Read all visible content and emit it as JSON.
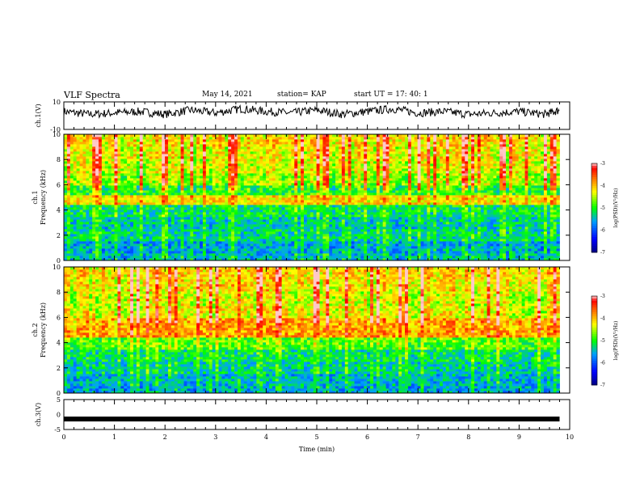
{
  "header": {
    "title": "VLF Spectra",
    "date": "May 14, 2021",
    "station": "station= KAP",
    "start": "start  UT =    17: 40: 1"
  },
  "colors": {
    "trace": "#000000",
    "colormap": [
      "#000080",
      "#0000ff",
      "#00a0ff",
      "#00ff00",
      "#ffff00",
      "#ff8000",
      "#ff0000",
      "#ffffff"
    ]
  },
  "chart_data": [
    {
      "type": "line",
      "title": "",
      "ylabel": "ch.1(V)",
      "ylim": [
        -10,
        10
      ],
      "yticks": [
        "10",
        "-10"
      ],
      "x": [
        0,
        0.5,
        1,
        1.5,
        2,
        2.5,
        3,
        3.5,
        4,
        4.5,
        5,
        5.5,
        6,
        6.5,
        7,
        7.5,
        8,
        8.5,
        9,
        9.5,
        9.8
      ],
      "y": [
        3,
        1,
        2,
        3,
        1,
        4,
        2,
        5,
        3,
        2,
        4,
        1,
        3,
        5,
        2,
        3,
        1,
        2,
        3,
        1,
        4
      ]
    },
    {
      "type": "heatmap",
      "ylabel_line1": "ch.1",
      "ylabel_line2": "Frequency (kHz)",
      "ylim": [
        0,
        10
      ],
      "yticks": [
        "0",
        "2",
        "4",
        "6",
        "8",
        "10"
      ],
      "colorbar_label": "log(PSD)(V²/Hz)",
      "colorbar_ticks": [
        "-3",
        "-4",
        "-5",
        "-6",
        "-7"
      ],
      "colorbar_range": [
        -7,
        -3
      ],
      "band_levels": [
        [
          0,
          0.5,
          -5.5
        ],
        [
          0.5,
          1.5,
          -5.6
        ],
        [
          1.5,
          2.5,
          -5.3
        ],
        [
          2.5,
          3.5,
          -5.4
        ],
        [
          3.5,
          4.5,
          -5.2
        ],
        [
          4.5,
          5.2,
          -4.2
        ],
        [
          5.2,
          6.0,
          -5.0
        ],
        [
          6.0,
          7.0,
          -4.6
        ],
        [
          7.0,
          8.0,
          -4.4
        ],
        [
          8.0,
          9.0,
          -4.3
        ],
        [
          9.0,
          10.0,
          -4.2
        ]
      ]
    },
    {
      "type": "heatmap",
      "ylabel_line1": "ch.2",
      "ylabel_line2": "Frequency (kHz)",
      "ylim": [
        0,
        10
      ],
      "yticks": [
        "0",
        "2",
        "4",
        "6",
        "8",
        "10"
      ],
      "colorbar_label": "log(PSD)(V²/Hz)",
      "colorbar_ticks": [
        "-3",
        "-4",
        "-5",
        "-6",
        "-7"
      ],
      "colorbar_range": [
        -7,
        -3
      ],
      "band_levels": [
        [
          0,
          0.5,
          -5.6
        ],
        [
          0.5,
          1.5,
          -5.5
        ],
        [
          1.5,
          2.5,
          -5.3
        ],
        [
          2.5,
          3.5,
          -5.2
        ],
        [
          3.5,
          4.5,
          -4.8
        ],
        [
          4.5,
          6.0,
          -3.9
        ],
        [
          6.0,
          7.0,
          -4.3
        ],
        [
          7.0,
          8.0,
          -4.4
        ],
        [
          8.0,
          9.0,
          -4.2
        ],
        [
          9.0,
          10.0,
          -4.1
        ]
      ]
    },
    {
      "type": "line",
      "ylabel": "ch.3(V)",
      "ylim": [
        -5,
        5
      ],
      "yticks": [
        "5",
        "0",
        "-5"
      ],
      "x": [
        0,
        9.8
      ],
      "y": [
        -1.5,
        -1.5
      ]
    }
  ],
  "xaxis": {
    "label": "Time  (min)",
    "range": [
      0,
      10
    ],
    "ticks": [
      "0",
      "1",
      "2",
      "3",
      "4",
      "5",
      "6",
      "7",
      "8",
      "9",
      "10"
    ]
  }
}
